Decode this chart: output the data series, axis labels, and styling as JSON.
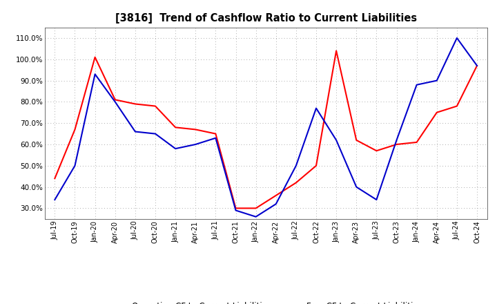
{
  "title": "[3816]  Trend of Cashflow Ratio to Current Liabilities",
  "x_labels": [
    "Jul-19",
    "Oct-19",
    "Jan-20",
    "Apr-20",
    "Jul-20",
    "Oct-20",
    "Jan-21",
    "Apr-21",
    "Jul-21",
    "Oct-21",
    "Jan-22",
    "Apr-22",
    "Jul-22",
    "Oct-22",
    "Jan-23",
    "Apr-23",
    "Jul-23",
    "Oct-23",
    "Jan-24",
    "Apr-24",
    "Jul-24",
    "Oct-24"
  ],
  "operating_cf": [
    44,
    67,
    101,
    81,
    79,
    78,
    68,
    67,
    65,
    30,
    30,
    36,
    42,
    50,
    104,
    62,
    57,
    60,
    61,
    75,
    78,
    97
  ],
  "free_cf": [
    34,
    50,
    93,
    80,
    66,
    65,
    58,
    60,
    63,
    29,
    26,
    32,
    50,
    77,
    62,
    40,
    34,
    62,
    88,
    90,
    110,
    97
  ],
  "ylim": [
    25,
    115
  ],
  "yticks": [
    30,
    40,
    50,
    60,
    70,
    80,
    90,
    100,
    110
  ],
  "operating_color": "#FF0000",
  "free_color": "#0000CC",
  "background_color": "#FFFFFF",
  "grid_color": "#AAAAAA",
  "legend_op": "Operating CF to Current Liabilities",
  "legend_free": "Free CF to Current Liabilities"
}
